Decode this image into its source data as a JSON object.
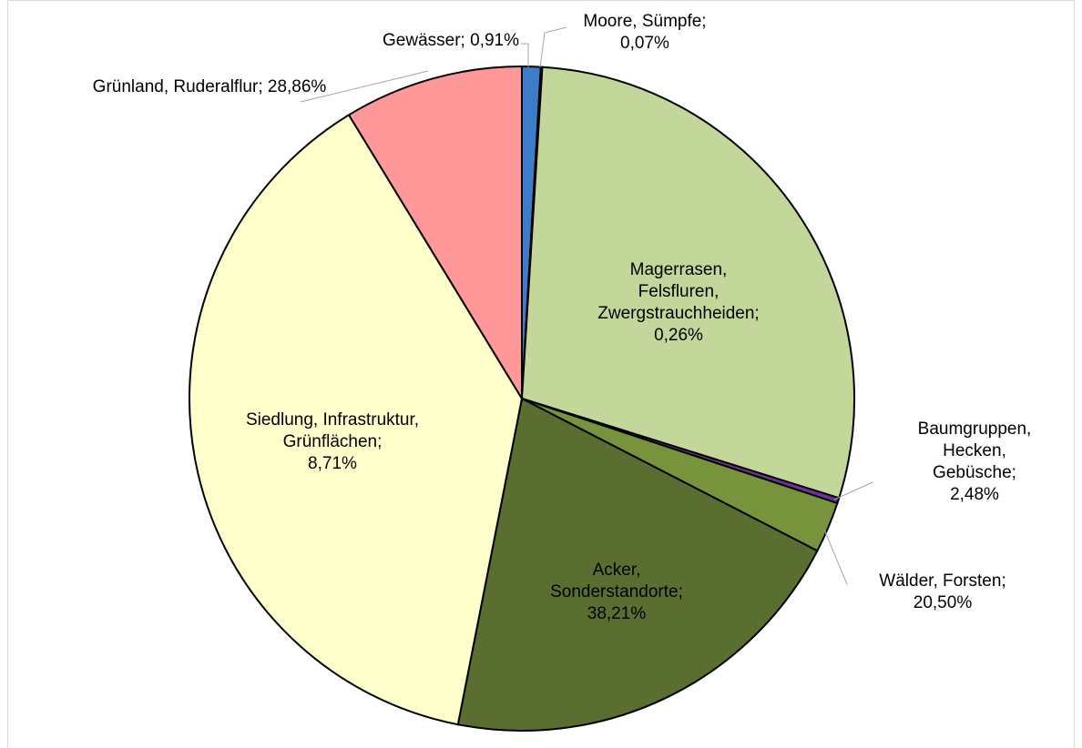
{
  "chart_data": {
    "type": "pie",
    "categories": [
      "Gewässer;",
      "Moore, Sümpfe;",
      "Grünland, Ruderalflur;",
      "Magerrasen,\nFelsfluren,\nZwergstrauchheiden;",
      "Baumgruppen,\nHecken, Gebüsche;",
      "Wälder, Forsten;",
      "Acker,\nSonderstandorte;",
      "Siedlung, Infrastruktur,\nGrünflächen;"
    ],
    "values": [
      0.91,
      0.07,
      28.86,
      0.26,
      2.48,
      20.5,
      38.21,
      8.71
    ],
    "value_labels": [
      "0,91%",
      "0,07%",
      "28,86%",
      "0,26%",
      "2,48%",
      "20,50%",
      "38,21%",
      "8,71%"
    ],
    "colors": [
      "#3d7cc9",
      "#1f2f5a",
      "#c4d79b",
      "#7030a0",
      "#77933c",
      "#5a6f2f",
      "#ffffcc",
      "#ff9999"
    ]
  }
}
